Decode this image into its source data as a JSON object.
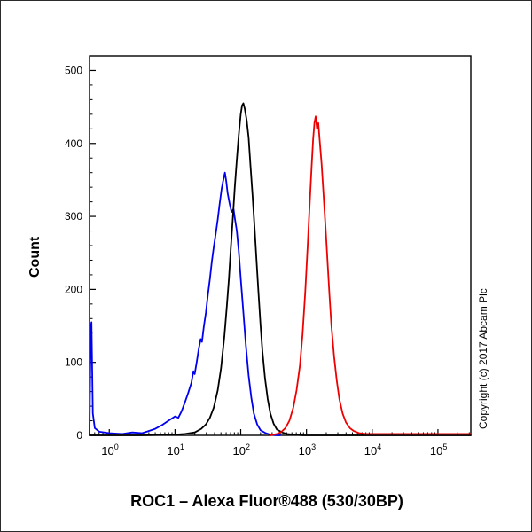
{
  "chart_data": {
    "type": "line",
    "title": "ROC1 – Alexa Fluor®488 (530/30BP)",
    "ylabel": "Count",
    "xlabel": "",
    "copyright": "Copyright (c) 2017 Abcam Plc",
    "legend": "none",
    "grid": false,
    "x_axis": {
      "scale": "log10",
      "min_log": -0.3,
      "max_log": 5.5,
      "tick_label_base": "10",
      "tick_exponents": [
        0,
        1,
        2,
        3,
        4,
        5
      ]
    },
    "y_axis": {
      "min": 0,
      "max": 520,
      "major_ticks": [
        0,
        100,
        200,
        300,
        400,
        500
      ],
      "minor_step": 20
    },
    "series": [
      {
        "name": "blue",
        "color": "#0000ee",
        "peak_x_log": 1.76,
        "peak_count": 360,
        "points": [
          [
            -0.3,
            0
          ],
          [
            -0.29,
            80
          ],
          [
            -0.28,
            150
          ],
          [
            -0.27,
            155
          ],
          [
            -0.26,
            90
          ],
          [
            -0.25,
            30
          ],
          [
            -0.22,
            10
          ],
          [
            -0.15,
            5
          ],
          [
            0.0,
            3
          ],
          [
            0.2,
            2
          ],
          [
            0.35,
            4
          ],
          [
            0.5,
            3
          ],
          [
            0.6,
            6
          ],
          [
            0.7,
            9
          ],
          [
            0.8,
            14
          ],
          [
            0.9,
            20
          ],
          [
            1.0,
            26
          ],
          [
            1.05,
            24
          ],
          [
            1.1,
            33
          ],
          [
            1.15,
            45
          ],
          [
            1.2,
            58
          ],
          [
            1.25,
            72
          ],
          [
            1.28,
            88
          ],
          [
            1.3,
            84
          ],
          [
            1.33,
            100
          ],
          [
            1.36,
            118
          ],
          [
            1.39,
            132
          ],
          [
            1.41,
            128
          ],
          [
            1.44,
            150
          ],
          [
            1.47,
            168
          ],
          [
            1.5,
            192
          ],
          [
            1.53,
            214
          ],
          [
            1.56,
            238
          ],
          [
            1.59,
            258
          ],
          [
            1.62,
            276
          ],
          [
            1.65,
            296
          ],
          [
            1.68,
            318
          ],
          [
            1.71,
            338
          ],
          [
            1.74,
            352
          ],
          [
            1.76,
            360
          ],
          [
            1.78,
            348
          ],
          [
            1.8,
            332
          ],
          [
            1.83,
            318
          ],
          [
            1.86,
            306
          ],
          [
            1.89,
            310
          ],
          [
            1.91,
            298
          ],
          [
            1.94,
            280
          ],
          [
            1.97,
            252
          ],
          [
            2.0,
            215
          ],
          [
            2.04,
            168
          ],
          [
            2.08,
            122
          ],
          [
            2.12,
            82
          ],
          [
            2.16,
            52
          ],
          [
            2.2,
            30
          ],
          [
            2.25,
            15
          ],
          [
            2.3,
            7
          ],
          [
            2.38,
            3
          ],
          [
            2.45,
            1
          ],
          [
            2.55,
            0
          ],
          [
            2.6,
            0
          ]
        ]
      },
      {
        "name": "black",
        "color": "#000000",
        "peak_x_log": 2.04,
        "peak_count": 455,
        "points": [
          [
            -0.3,
            0
          ],
          [
            0.5,
            0
          ],
          [
            1.0,
            1
          ],
          [
            1.15,
            2
          ],
          [
            1.3,
            4
          ],
          [
            1.4,
            9
          ],
          [
            1.47,
            15
          ],
          [
            1.53,
            24
          ],
          [
            1.59,
            38
          ],
          [
            1.65,
            62
          ],
          [
            1.7,
            92
          ],
          [
            1.75,
            135
          ],
          [
            1.79,
            178
          ],
          [
            1.82,
            215
          ],
          [
            1.85,
            258
          ],
          [
            1.88,
            298
          ],
          [
            1.91,
            340
          ],
          [
            1.94,
            378
          ],
          [
            1.97,
            412
          ],
          [
            2.0,
            440
          ],
          [
            2.02,
            452
          ],
          [
            2.04,
            455
          ],
          [
            2.06,
            448
          ],
          [
            2.09,
            432
          ],
          [
            2.12,
            408
          ],
          [
            2.15,
            368
          ],
          [
            2.18,
            328
          ],
          [
            2.21,
            285
          ],
          [
            2.24,
            240
          ],
          [
            2.27,
            196
          ],
          [
            2.3,
            152
          ],
          [
            2.33,
            115
          ],
          [
            2.37,
            78
          ],
          [
            2.41,
            50
          ],
          [
            2.45,
            30
          ],
          [
            2.5,
            16
          ],
          [
            2.55,
            8
          ],
          [
            2.63,
            4
          ],
          [
            2.7,
            2
          ],
          [
            2.8,
            1
          ],
          [
            2.95,
            0
          ],
          [
            5.5,
            0
          ]
        ]
      },
      {
        "name": "red",
        "color": "#ee0000",
        "peak_x_log": 3.14,
        "peak_count": 437,
        "points": [
          [
            2.45,
            0
          ],
          [
            2.55,
            2
          ],
          [
            2.62,
            5
          ],
          [
            2.68,
            10
          ],
          [
            2.74,
            20
          ],
          [
            2.8,
            38
          ],
          [
            2.85,
            62
          ],
          [
            2.9,
            95
          ],
          [
            2.94,
            138
          ],
          [
            2.98,
            195
          ],
          [
            3.02,
            262
          ],
          [
            3.05,
            320
          ],
          [
            3.08,
            372
          ],
          [
            3.1,
            405
          ],
          [
            3.12,
            428
          ],
          [
            3.14,
            437
          ],
          [
            3.16,
            420
          ],
          [
            3.18,
            428
          ],
          [
            3.2,
            405
          ],
          [
            3.23,
            372
          ],
          [
            3.26,
            330
          ],
          [
            3.29,
            284
          ],
          [
            3.32,
            238
          ],
          [
            3.35,
            192
          ],
          [
            3.38,
            150
          ],
          [
            3.42,
            108
          ],
          [
            3.46,
            75
          ],
          [
            3.5,
            50
          ],
          [
            3.55,
            30
          ],
          [
            3.6,
            18
          ],
          [
            3.66,
            10
          ],
          [
            3.72,
            6
          ],
          [
            3.8,
            3
          ],
          [
            3.9,
            2
          ],
          [
            4.05,
            2
          ],
          [
            4.3,
            2
          ],
          [
            4.6,
            2
          ],
          [
            5.0,
            2
          ],
          [
            5.5,
            2
          ]
        ]
      }
    ]
  }
}
